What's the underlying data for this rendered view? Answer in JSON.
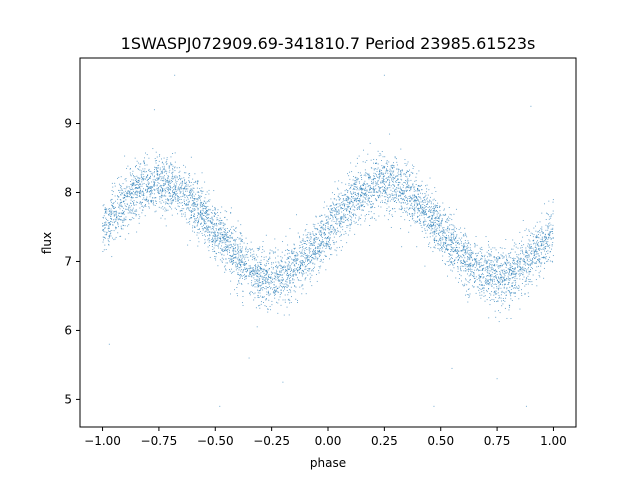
{
  "chart_data": {
    "type": "scatter",
    "title": "1SWASPJ072909.69-341810.7 Period 23985.61523s",
    "xlabel": "phase",
    "ylabel": "flux",
    "xlim": [
      -1.1,
      1.1
    ],
    "ylim": [
      4.6,
      9.95
    ],
    "xticks": [
      -1.0,
      -0.75,
      -0.5,
      -0.25,
      0.0,
      0.25,
      0.5,
      0.75,
      1.0
    ],
    "xtick_labels": [
      "−1.00",
      "−0.75",
      "−0.50",
      "−0.25",
      "0.00",
      "0.25",
      "0.50",
      "0.75",
      "1.00"
    ],
    "yticks": [
      5,
      6,
      7,
      8,
      9
    ],
    "ytick_labels": [
      "5",
      "6",
      "7",
      "8",
      "9"
    ],
    "grid": false,
    "marker_color": "#1f77b4",
    "series": [
      {
        "model": "sinusoid",
        "x_range": [
          -1.0,
          1.0
        ],
        "mean_flux": 7.45,
        "amplitude": 0.68,
        "max_phase": 0.25,
        "period_in_phase": 1.0,
        "scatter_sigma": 0.2,
        "n_points": 6000,
        "outliers": [
          {
            "x": -0.68,
            "y": 9.7
          },
          {
            "x": -0.77,
            "y": 9.2
          },
          {
            "x": 0.25,
            "y": 9.7
          },
          {
            "x": 0.9,
            "y": 9.25
          },
          {
            "x": -0.97,
            "y": 5.8
          },
          {
            "x": -0.2,
            "y": 5.25
          },
          {
            "x": -0.48,
            "y": 4.9
          },
          {
            "x": 0.47,
            "y": 4.9
          },
          {
            "x": 0.88,
            "y": 4.9
          },
          {
            "x": 0.75,
            "y": 5.3
          },
          {
            "x": 0.55,
            "y": 5.45
          },
          {
            "x": -0.35,
            "y": 5.6
          }
        ]
      }
    ]
  }
}
